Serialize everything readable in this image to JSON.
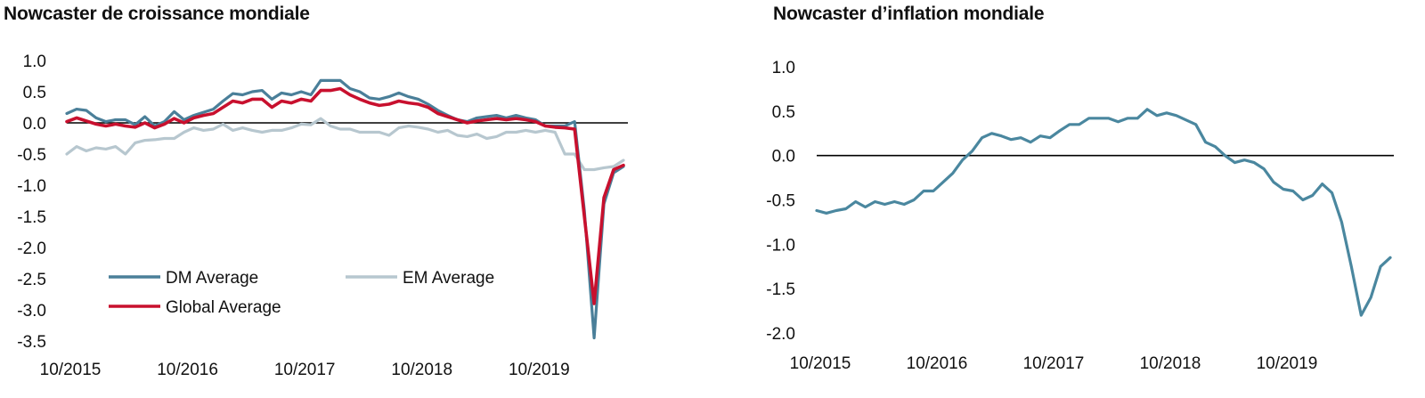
{
  "charts": {
    "left_title": "Nowcaster de croissance mondiale",
    "right_title": "Nowcaster d’inflation mondiale"
  },
  "colors": {
    "dm": "#4a7f99",
    "em": "#b7c7cf",
    "global": "#c8102e",
    "inflation": "#4a879f",
    "zero_line": "#000000"
  },
  "chart_data": [
    {
      "type": "line",
      "title": "Nowcaster de croissance mondiale",
      "x_start": "2015-10",
      "x_ticks": [
        "10/2015",
        "10/2016",
        "10/2017",
        "10/2018",
        "10/2019"
      ],
      "y_ticks": [
        "1.0",
        "0.5",
        "0.0",
        "-0.5",
        "-1.0",
        "-1.5",
        "-2.0",
        "-2.5",
        "-3.0",
        "-3.5"
      ],
      "ylim": [
        -3.5,
        1.0
      ],
      "legend": "inside-bottom-left",
      "series": [
        {
          "name": "DM Average",
          "values": [
            0.15,
            0.22,
            0.2,
            0.08,
            0.02,
            0.05,
            0.05,
            -0.03,
            0.1,
            -0.05,
            0.02,
            0.18,
            0.05,
            0.12,
            0.17,
            0.22,
            0.35,
            0.47,
            0.45,
            0.5,
            0.52,
            0.38,
            0.48,
            0.45,
            0.5,
            0.45,
            0.68,
            0.68,
            0.68,
            0.55,
            0.5,
            0.4,
            0.38,
            0.42,
            0.48,
            0.42,
            0.38,
            0.3,
            0.2,
            0.12,
            0.05,
            0.02,
            0.08,
            0.1,
            0.12,
            0.08,
            0.12,
            0.08,
            0.05,
            -0.05,
            -0.05,
            -0.05,
            0.02,
            -1.4,
            -3.45,
            -1.3,
            -0.8,
            -0.7
          ]
        },
        {
          "name": "EM Average",
          "values": [
            -0.5,
            -0.38,
            -0.45,
            -0.4,
            -0.42,
            -0.38,
            -0.5,
            -0.32,
            -0.28,
            -0.27,
            -0.25,
            -0.25,
            -0.15,
            -0.08,
            -0.12,
            -0.1,
            -0.02,
            -0.12,
            -0.08,
            -0.12,
            -0.15,
            -0.12,
            -0.12,
            -0.08,
            -0.02,
            -0.03,
            0.07,
            -0.05,
            -0.1,
            -0.1,
            -0.15,
            -0.15,
            -0.15,
            -0.2,
            -0.08,
            -0.05,
            -0.07,
            -0.1,
            -0.15,
            -0.12,
            -0.2,
            -0.22,
            -0.18,
            -0.25,
            -0.22,
            -0.15,
            -0.15,
            -0.12,
            -0.15,
            -0.12,
            -0.15,
            -0.5,
            -0.5,
            -0.75,
            -0.75,
            -0.72,
            -0.7,
            -0.6
          ]
        },
        {
          "name": "Global Average",
          "values": [
            0.02,
            0.08,
            0.03,
            -0.02,
            -0.05,
            -0.02,
            -0.05,
            -0.07,
            0.0,
            -0.08,
            -0.02,
            0.07,
            0.0,
            0.08,
            0.12,
            0.15,
            0.25,
            0.35,
            0.32,
            0.38,
            0.38,
            0.25,
            0.35,
            0.32,
            0.38,
            0.35,
            0.52,
            0.52,
            0.55,
            0.45,
            0.38,
            0.32,
            0.28,
            0.3,
            0.35,
            0.32,
            0.3,
            0.25,
            0.15,
            0.1,
            0.05,
            0.0,
            0.03,
            0.05,
            0.07,
            0.05,
            0.07,
            0.05,
            0.02,
            -0.05,
            -0.07,
            -0.08,
            -0.1,
            -1.5,
            -2.9,
            -1.2,
            -0.75,
            -0.68
          ]
        }
      ]
    },
    {
      "type": "line",
      "title": "Nowcaster d’inflation mondiale",
      "x_start": "2015-10",
      "x_ticks": [
        "10/2015",
        "10/2016",
        "10/2017",
        "10/2018",
        "10/2019"
      ],
      "y_ticks": [
        "1.0",
        "0.5",
        "0.0",
        "-0.5",
        "-1.0",
        "-1.5",
        "-2.0"
      ],
      "ylim": [
        -2.0,
        1.0
      ],
      "series": [
        {
          "values": [
            -0.62,
            -0.65,
            -0.62,
            -0.6,
            -0.52,
            -0.58,
            -0.52,
            -0.55,
            -0.52,
            -0.55,
            -0.5,
            -0.4,
            -0.4,
            -0.3,
            -0.2,
            -0.05,
            0.05,
            0.2,
            0.25,
            0.22,
            0.18,
            0.2,
            0.15,
            0.22,
            0.2,
            0.28,
            0.35,
            0.35,
            0.42,
            0.42,
            0.42,
            0.38,
            0.42,
            0.42,
            0.52,
            0.45,
            0.48,
            0.45,
            0.4,
            0.35,
            0.15,
            0.1,
            0.0,
            -0.08,
            -0.05,
            -0.08,
            -0.15,
            -0.3,
            -0.38,
            -0.4,
            -0.5,
            -0.45,
            -0.32,
            -0.42,
            -0.75,
            -1.25,
            -1.8,
            -1.6,
            -1.25,
            -1.15
          ]
        }
      ]
    }
  ]
}
